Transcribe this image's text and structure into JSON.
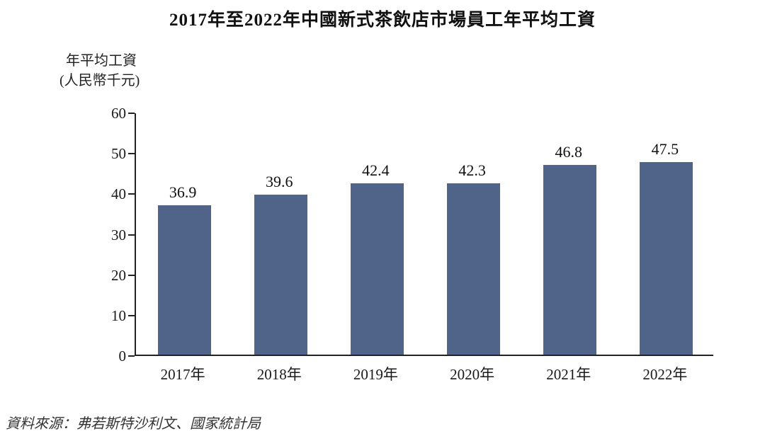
{
  "chart_data": {
    "type": "bar",
    "title": "2017年至2022年中國新式茶飲店市場員工年平均工資",
    "ylabel_line1": "年平均工資",
    "ylabel_line2": "(人民幣千元)",
    "categories": [
      "2017年",
      "2018年",
      "2019年",
      "2020年",
      "2021年",
      "2022年"
    ],
    "values": [
      36.9,
      39.6,
      42.4,
      42.3,
      46.8,
      47.5
    ],
    "value_labels": [
      "36.9",
      "39.6",
      "42.4",
      "42.3",
      "46.8",
      "47.5"
    ],
    "ylim": [
      0,
      60
    ],
    "yticks": [
      0,
      10,
      20,
      30,
      40,
      50,
      60
    ],
    "grid": false,
    "legend": "none",
    "bar_color": "#4f6488",
    "axis_color": "#222222"
  },
  "source": "資料來源：弗若斯特沙利文、國家統計局"
}
